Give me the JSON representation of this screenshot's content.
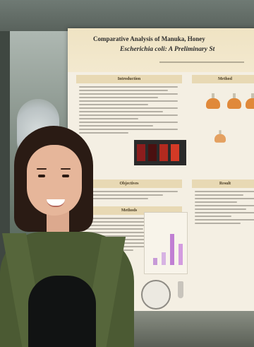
{
  "poster": {
    "title_line1": "Comparative Analysis of Manuka, Honey",
    "title_line2": "Escherichia coli: A Preliminary St",
    "sections": {
      "introduction": "Introduction",
      "objectives": "Objectives",
      "methods": "Methods",
      "methods_right": "Method",
      "results": "Result"
    }
  },
  "colors": {
    "poster_bg": "#f4efe3",
    "section_band": "#e8d9b4",
    "jacket": "#4b5a33"
  }
}
